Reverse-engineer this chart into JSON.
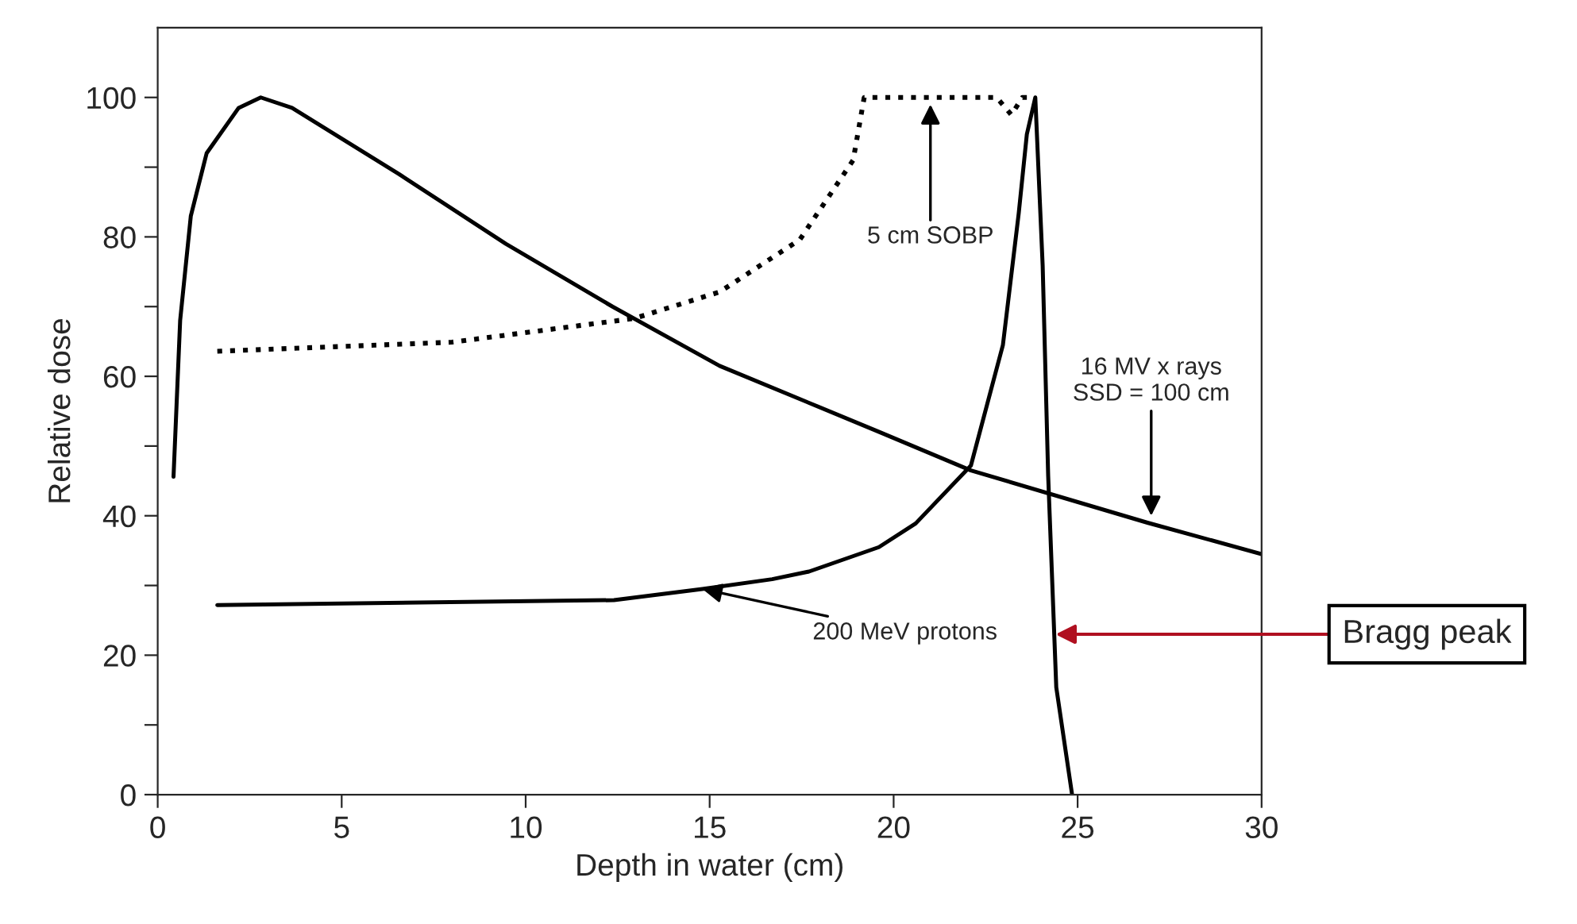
{
  "chart_data": {
    "type": "line",
    "xlabel": "Depth in water (cm)",
    "ylabel": "Relative dose",
    "xlim": [
      0,
      30
    ],
    "ylim": [
      0,
      110
    ],
    "xticks": [
      0,
      5,
      10,
      15,
      20,
      25,
      30
    ],
    "yticks": [
      0,
      {
        "value": 10,
        "label": null
      },
      20,
      {
        "value": 30,
        "label": null
      },
      40,
      {
        "value": 50,
        "label": null
      },
      60,
      {
        "value": 70,
        "label": null
      },
      80,
      {
        "value": 90,
        "label": null
      },
      100
    ],
    "grid": false,
    "legend": false,
    "marker": "none",
    "series": [
      {
        "color": "#000000",
        "line_style": "solid",
        "x": [
          0.43,
          0.61,
          0.9,
          1.33,
          2.2,
          2.8,
          3.65,
          6.56,
          9.46,
          12.36,
          15.27,
          19.62,
          22.1,
          26.9,
          30
        ],
        "values": [
          45.6,
          68,
          83,
          92,
          98.5,
          100,
          98.5,
          89,
          79,
          70,
          61.5,
          52,
          46.5,
          39,
          34.5
        ]
      },
      {
        "color": "#000000",
        "line_style": "dotted",
        "x": [
          1.62,
          8.0,
          12.95,
          15.27,
          17.45,
          18.9,
          19.2,
          22.8,
          23.2,
          23.5,
          23.8
        ],
        "values": [
          63.6,
          64.9,
          68.3,
          72.1,
          79.6,
          91,
          100,
          100,
          97.5,
          100,
          100
        ]
      },
      {
        "color": "#000000",
        "line_style": "solid",
        "x": [
          1.62,
          12.4,
          14.8,
          16.7,
          17.7,
          19.6,
          20.6,
          22.1,
          22.97,
          23.4,
          23.62,
          23.85,
          24.05,
          24.2,
          24.42,
          24.85
        ],
        "values": [
          27.2,
          27.9,
          29.5,
          30.9,
          32,
          35.5,
          38.9,
          47.2,
          64.5,
          83.4,
          94.7,
          100,
          75.9,
          45.7,
          15.4,
          0
        ]
      }
    ],
    "annotations": [
      {
        "text": "5 cm SOBP",
        "x": 21,
        "y": 99
      },
      {
        "text": "16 MV x rays\nSSD = 100 cm",
        "x": 27,
        "y": 40
      },
      {
        "text": "200 MeV protons",
        "x": 14.8,
        "y": 29.5
      },
      {
        "text": "Bragg peak",
        "x": 24.4,
        "y": 23
      }
    ]
  }
}
